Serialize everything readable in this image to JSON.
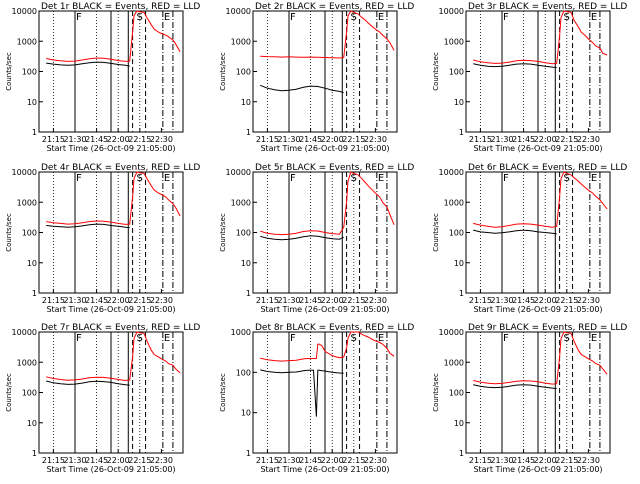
{
  "figure": {
    "xlabel": "Start Time (26-Oct-09 21:05:00)",
    "ylabel": "Counts/sec",
    "x_tick_labels": [
      "21:15",
      "21:30",
      "21:45",
      "22:00",
      "22:15",
      "22:30"
    ],
    "y_tick_labels": [
      "1",
      "10",
      "100",
      "1000",
      "10000"
    ],
    "region_labels": [
      "F",
      "S",
      "E"
    ]
  },
  "colors": {
    "events": "#000000",
    "lld": "#ff0000",
    "axis": "#000000"
  },
  "chart_data": [
    {
      "type": "line",
      "title": "Det 1r BLACK = Events, RED = LLD",
      "xlabel": "Start Time (26-Oct-09 21:05:00)",
      "ylabel": "Counts/sec",
      "ylim": [
        1,
        10000
      ],
      "y_scale": "log",
      "x_unit": "minutes since 21:05:00",
      "x": [
        5,
        10,
        15,
        20,
        25,
        30,
        35,
        40,
        45,
        50,
        55,
        60,
        63,
        65,
        66,
        68,
        70,
        73,
        75,
        78,
        80,
        83,
        85,
        88,
        90,
        93,
        95,
        98
      ],
      "series": [
        {
          "name": "Events",
          "values": [
            190,
            175,
            165,
            160,
            165,
            180,
            195,
            205,
            200,
            185,
            170,
            160,
            150,
            null,
            null,
            null,
            null,
            null,
            null,
            null,
            null,
            null,
            null,
            null,
            null,
            null,
            null,
            null
          ]
        },
        {
          "name": "LLD",
          "values": [
            270,
            240,
            225,
            215,
            220,
            240,
            265,
            280,
            275,
            255,
            230,
            215,
            220,
            2000,
            7000,
            10000,
            9500,
            9000,
            6000,
            3500,
            2500,
            2000,
            1800,
            1600,
            1400,
            1100,
            800,
            450
          ]
        }
      ]
    },
    {
      "type": "line",
      "title": "Det 2r BLACK = Events, RED = LLD",
      "xlabel": "Start Time (26-Oct-09 21:05:00)",
      "ylabel": "Counts/sec",
      "ylim": [
        1,
        10000
      ],
      "y_scale": "log",
      "x_unit": "minutes since 21:05:00",
      "x": [
        5,
        10,
        15,
        20,
        25,
        30,
        35,
        40,
        45,
        50,
        55,
        60,
        63,
        65,
        66,
        68,
        70,
        73,
        75,
        78,
        80,
        83,
        85,
        88,
        90,
        93,
        95,
        98
      ],
      "series": [
        {
          "name": "Events",
          "values": [
            35,
            28,
            25,
            23,
            24,
            26,
            30,
            33,
            32,
            28,
            24,
            22,
            20,
            null,
            null,
            null,
            null,
            null,
            null,
            null,
            null,
            null,
            null,
            null,
            null,
            null,
            null,
            null
          ]
        },
        {
          "name": "LLD",
          "values": [
            320,
            310,
            305,
            300,
            305,
            300,
            295,
            300,
            298,
            290,
            285,
            280,
            290,
            2000,
            7000,
            10000,
            9000,
            8000,
            6500,
            5000,
            4000,
            3000,
            2500,
            2000,
            1600,
            1200,
            900,
            500
          ]
        }
      ]
    },
    {
      "type": "line",
      "title": "Det 3r BLACK = Events, RED = LLD",
      "xlabel": "Start Time (26-Oct-09 21:05:00)",
      "ylabel": "Counts/sec",
      "ylim": [
        1,
        10000
      ],
      "y_scale": "log",
      "x_unit": "minutes since 21:05:00",
      "x": [
        5,
        10,
        15,
        20,
        25,
        30,
        35,
        40,
        45,
        50,
        55,
        60,
        63,
        65,
        66,
        68,
        70,
        73,
        75,
        78,
        80,
        83,
        85,
        88,
        90,
        93,
        95,
        98
      ],
      "series": [
        {
          "name": "Events",
          "values": [
            180,
            160,
            150,
            145,
            148,
            160,
            175,
            180,
            175,
            160,
            150,
            140,
            135,
            null,
            null,
            null,
            null,
            null,
            null,
            null,
            null,
            null,
            null,
            null,
            null,
            null,
            null,
            null
          ]
        },
        {
          "name": "LLD",
          "values": [
            240,
            210,
            195,
            185,
            190,
            205,
            225,
            235,
            230,
            215,
            195,
            180,
            185,
            1500,
            6000,
            10000,
            9500,
            9000,
            5000,
            3000,
            2000,
            1500,
            1200,
            900,
            700,
            600,
            400,
            350
          ]
        }
      ]
    },
    {
      "type": "line",
      "title": "Det 4r BLACK = Events, RED = LLD",
      "xlabel": "Start Time (26-Oct-09 21:05:00)",
      "ylabel": "Counts/sec",
      "ylim": [
        1,
        10000
      ],
      "y_scale": "log",
      "x_unit": "minutes since 21:05:00",
      "x": [
        5,
        10,
        15,
        20,
        25,
        30,
        35,
        40,
        45,
        50,
        55,
        60,
        63,
        65,
        66,
        68,
        70,
        73,
        75,
        78,
        80,
        83,
        85,
        88,
        90,
        93,
        95,
        98
      ],
      "series": [
        {
          "name": "Events",
          "values": [
            170,
            160,
            155,
            150,
            155,
            165,
            180,
            190,
            185,
            170,
            160,
            150,
            145,
            null,
            null,
            null,
            null,
            null,
            null,
            null,
            null,
            null,
            null,
            null,
            null,
            null,
            null,
            null
          ]
        },
        {
          "name": "LLD",
          "values": [
            230,
            210,
            200,
            190,
            195,
            210,
            230,
            240,
            235,
            220,
            200,
            185,
            190,
            1500,
            6000,
            10000,
            9500,
            9000,
            6000,
            3500,
            2500,
            2000,
            1800,
            1500,
            1200,
            900,
            650,
            350
          ]
        }
      ]
    },
    {
      "type": "line",
      "title": "Det 5r BLACK = Events, RED = LLD",
      "xlabel": "Start Time (26-Oct-09 21:05:00)",
      "ylabel": "Counts/sec",
      "ylim": [
        1,
        10000
      ],
      "y_scale": "log",
      "x_unit": "minutes since 21:05:00",
      "x": [
        5,
        10,
        15,
        20,
        25,
        30,
        35,
        40,
        45,
        50,
        55,
        60,
        63,
        65,
        66,
        68,
        70,
        73,
        75,
        78,
        80,
        83,
        85,
        88,
        90,
        93,
        95,
        98
      ],
      "series": [
        {
          "name": "Events",
          "values": [
            75,
            65,
            60,
            58,
            60,
            65,
            72,
            78,
            75,
            68,
            62,
            60,
            70,
            null,
            null,
            null,
            null,
            null,
            null,
            null,
            null,
            null,
            null,
            null,
            null,
            null,
            null,
            null
          ]
        },
        {
          "name": "LLD",
          "values": [
            110,
            95,
            88,
            85,
            88,
            95,
            108,
            115,
            112,
            100,
            92,
            88,
            150,
            1000,
            5000,
            10000,
            9000,
            8000,
            6500,
            4500,
            3500,
            2500,
            2000,
            1500,
            1000,
            700,
            400,
            180
          ]
        }
      ]
    },
    {
      "type": "line",
      "title": "Det 6r BLACK = Events, RED = LLD",
      "xlabel": "Start Time (26-Oct-09 21:05:00)",
      "ylabel": "Counts/sec",
      "ylim": [
        1,
        10000
      ],
      "y_scale": "log",
      "x_unit": "minutes since 21:05:00",
      "x": [
        5,
        10,
        15,
        20,
        25,
        30,
        35,
        40,
        45,
        50,
        55,
        60,
        63,
        65,
        66,
        68,
        70,
        73,
        75,
        78,
        80,
        83,
        85,
        88,
        90,
        93,
        95,
        98
      ],
      "series": [
        {
          "name": "Events",
          "values": [
            120,
            105,
            100,
            95,
            98,
            105,
            115,
            120,
            115,
            105,
            100,
            95,
            90,
            null,
            null,
            null,
            null,
            null,
            null,
            null,
            null,
            null,
            null,
            null,
            null,
            null,
            null,
            null
          ]
        },
        {
          "name": "LLD",
          "values": [
            200,
            175,
            160,
            150,
            155,
            170,
            190,
            195,
            190,
            175,
            160,
            150,
            160,
            1500,
            6000,
            10000,
            9000,
            8000,
            6500,
            5000,
            4000,
            3000,
            2500,
            2000,
            1600,
            1200,
            900,
            600
          ]
        }
      ]
    },
    {
      "type": "line",
      "title": "Det 7r BLACK = Events, RED = LLD",
      "xlabel": "Start Time (26-Oct-09 21:05:00)",
      "ylabel": "Counts/sec",
      "ylim": [
        1,
        10000
      ],
      "y_scale": "log",
      "x_unit": "minutes since 21:05:00",
      "x": [
        5,
        10,
        15,
        20,
        25,
        30,
        35,
        40,
        45,
        50,
        55,
        60,
        63,
        65,
        66,
        68,
        70,
        73,
        75,
        78,
        80,
        83,
        85,
        88,
        90,
        93,
        95,
        98
      ],
      "series": [
        {
          "name": "Events",
          "values": [
            240,
            210,
            195,
            185,
            190,
            205,
            225,
            235,
            230,
            215,
            195,
            180,
            175,
            null,
            null,
            null,
            null,
            null,
            null,
            null,
            null,
            null,
            null,
            null,
            null,
            null,
            null,
            null
          ]
        },
        {
          "name": "LLD",
          "values": [
            330,
            290,
            270,
            255,
            260,
            280,
            305,
            320,
            315,
            295,
            270,
            250,
            260,
            1500,
            6000,
            10000,
            9500,
            9000,
            5000,
            2500,
            1800,
            1500,
            1300,
            1100,
            900,
            800,
            600,
            450
          ]
        }
      ]
    },
    {
      "type": "line",
      "title": "Det 8r BLACK = Events, RED = LLD",
      "xlabel": "Start Time (26-Oct-09 21:05:00)",
      "ylabel": "Counts/sec",
      "ylim": [
        1,
        1000
      ],
      "y_scale": "log",
      "x_unit": "minutes since 21:05:00",
      "x": [
        5,
        10,
        15,
        20,
        25,
        30,
        35,
        38,
        40,
        42,
        44,
        45,
        46,
        48,
        50,
        52,
        55,
        58,
        60,
        63,
        65,
        66,
        68,
        70,
        73,
        75,
        78,
        80,
        83,
        85,
        88,
        90,
        93,
        95,
        98
      ],
      "series": [
        {
          "name": "Events",
          "values": [
            115,
            105,
            100,
            98,
            100,
            102,
            110,
            112,
            112,
            112,
            8,
            112,
            112,
            110,
            108,
            104,
            100,
            98,
            96,
            95,
            null,
            null,
            null,
            null,
            null,
            null,
            null,
            null,
            null,
            null,
            null,
            null,
            null,
            null,
            null
          ]
        },
        {
          "name": "LLD",
          "values": [
            225,
            205,
            195,
            190,
            195,
            200,
            215,
            220,
            220,
            220,
            220,
            500,
            500,
            450,
            330,
            300,
            260,
            240,
            230,
            240,
            400,
            700,
            1000,
            1000,
            1000,
            900,
            800,
            750,
            650,
            600,
            550,
            500,
            400,
            300,
            250
          ]
        }
      ]
    },
    {
      "type": "line",
      "title": "Det 9r BLACK = Events, RED = LLD",
      "xlabel": "Start Time (26-Oct-09 21:05:00)",
      "ylabel": "Counts/sec",
      "ylim": [
        1,
        10000
      ],
      "y_scale": "log",
      "x_unit": "minutes since 21:05:00",
      "x": [
        5,
        10,
        15,
        20,
        25,
        30,
        35,
        40,
        45,
        50,
        55,
        60,
        63,
        65,
        66,
        68,
        70,
        73,
        75,
        78,
        80,
        83,
        85,
        88,
        90,
        93,
        95,
        98
      ],
      "series": [
        {
          "name": "Events",
          "values": [
            180,
            160,
            150,
            145,
            148,
            160,
            175,
            180,
            175,
            160,
            150,
            140,
            135,
            null,
            null,
            null,
            null,
            null,
            null,
            null,
            null,
            null,
            null,
            null,
            null,
            null,
            null,
            null
          ]
        },
        {
          "name": "LLD",
          "values": [
            250,
            220,
            205,
            195,
            200,
            215,
            235,
            245,
            240,
            225,
            205,
            190,
            195,
            1500,
            6000,
            10000,
            9500,
            9000,
            5000,
            2500,
            1800,
            1500,
            1300,
            1100,
            900,
            800,
            600,
            400
          ]
        }
      ]
    }
  ]
}
